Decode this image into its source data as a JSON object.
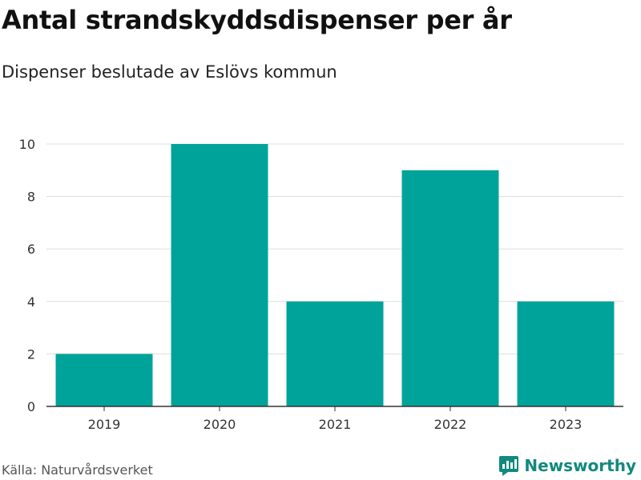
{
  "title": "Antal strandskyddsdispenser per år",
  "subtitle": "Dispenser beslutade av Eslövs kommun",
  "source": "Källa: Naturvårdsverket",
  "brand": "Newsworthy",
  "colors": {
    "bar": "#00a39a",
    "grid": "#dddddd",
    "axis": "#333333",
    "brand": "#12897f"
  },
  "chart_data": {
    "type": "bar",
    "title": "Antal strandskyddsdispenser per år",
    "xlabel": "",
    "ylabel": "",
    "categories": [
      "2019",
      "2020",
      "2021",
      "2022",
      "2023"
    ],
    "values": [
      2,
      10,
      4,
      9,
      4
    ],
    "ylim": [
      0,
      10
    ],
    "yticks": [
      "0",
      "2",
      "4",
      "6",
      "8",
      "10"
    ],
    "grid": true,
    "legend": "none"
  }
}
